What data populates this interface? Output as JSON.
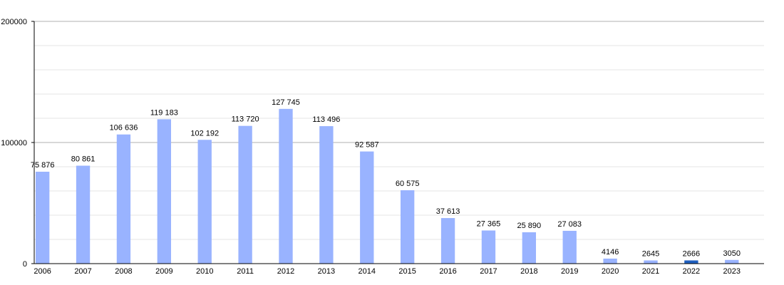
{
  "chart_data": {
    "type": "bar",
    "categories": [
      "2006",
      "2007",
      "2008",
      "2009",
      "2010",
      "2011",
      "2012",
      "2013",
      "2014",
      "2015",
      "2016",
      "2017",
      "2018",
      "2019",
      "2020",
      "2021",
      "2022",
      "2023"
    ],
    "values": [
      75876,
      80861,
      106636,
      119183,
      102192,
      113720,
      127745,
      113496,
      92587,
      60575,
      37613,
      27365,
      25890,
      27083,
      4146,
      2645,
      2666,
      3050
    ],
    "data_labels": [
      "75 876",
      "80 861",
      "106 636",
      "119 183",
      "102 192",
      "113 720",
      "127 745",
      "113 496",
      "92 587",
      "60 575",
      "37 613",
      "27 365",
      "25 890",
      "27 083",
      "4146",
      "2645",
      "2666",
      "3050"
    ],
    "ylim": [
      0,
      200000
    ],
    "y_ticks": [
      "0",
      "100000",
      "200000"
    ],
    "grid": true,
    "colors": {
      "bar": "#99b3ff",
      "highlight": "#1f5fbf",
      "major_grid": "#b0b0b0",
      "minor_grid": "#e4e4e4",
      "axis": "#000000"
    },
    "highlight_category": "2022"
  }
}
